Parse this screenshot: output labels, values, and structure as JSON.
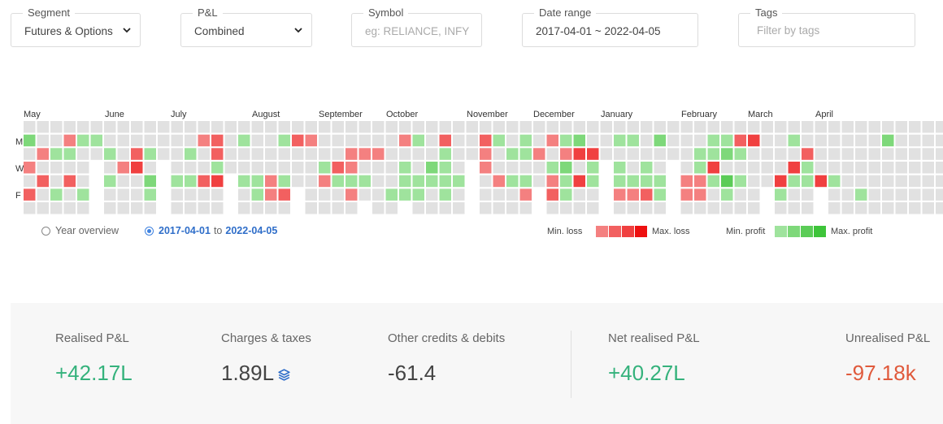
{
  "filters": {
    "segment": {
      "label": "Segment",
      "value": "Futures & Options"
    },
    "pnl": {
      "label": "P&L",
      "value": "Combined"
    },
    "symbol": {
      "label": "Symbol",
      "placeholder": "eg: RELIANCE, INFY"
    },
    "date_range": {
      "label": "Date range",
      "value": "2017-04-01 ~ 2022-04-05"
    },
    "tags": {
      "label": "Tags",
      "placeholder": "Filter by tags"
    }
  },
  "heatmap": {
    "months": [
      "May",
      "June",
      "July",
      "August",
      "September",
      "October",
      "November",
      "December",
      "January",
      "February",
      "March",
      "April"
    ],
    "day_labels": [
      "M",
      "W",
      "F"
    ],
    "colors": {
      "empty": "#e1e1e1",
      "loss": [
        "#f48080",
        "#f26060",
        "#f04040",
        "#ee1010"
      ],
      "profit": [
        "#9fe39d",
        "#7ed87a",
        "#5bcc57",
        "#3ec43a"
      ]
    },
    "week_values": [
      [
        0,
        2,
        0,
        -1,
        0,
        -2,
        0
      ],
      [
        0,
        0,
        -1,
        0,
        -2,
        0,
        0
      ],
      [
        0,
        0,
        1,
        0,
        0,
        1,
        0
      ],
      [
        0,
        -1,
        1,
        0,
        -2,
        0,
        0
      ],
      [
        0,
        1,
        0,
        0,
        0,
        1,
        0
      ],
      [
        0,
        1,
        0,
        0,
        0,
        0,
        0
      ],
      [
        0,
        0,
        1,
        0,
        1,
        0,
        0
      ],
      [
        0,
        0,
        0,
        -1,
        0,
        0,
        0
      ],
      [
        0,
        0,
        -2,
        -3,
        0,
        0,
        0
      ],
      [
        0,
        0,
        1,
        0,
        2,
        1,
        0
      ],
      [
        0,
        0,
        0,
        0,
        0,
        0,
        0
      ],
      [
        0,
        0,
        0,
        0,
        1,
        0,
        0
      ],
      [
        0,
        0,
        1,
        0,
        1,
        0,
        0
      ],
      [
        0,
        -1,
        0,
        0,
        -2,
        0,
        0
      ],
      [
        0,
        -2,
        -2,
        1,
        -3,
        0,
        0
      ],
      [
        0,
        0,
        0,
        0,
        0,
        0,
        0
      ],
      [
        0,
        1,
        0,
        0,
        1,
        0,
        0
      ],
      [
        0,
        0,
        0,
        0,
        1,
        1,
        0
      ],
      [
        0,
        0,
        0,
        0,
        -1,
        -1,
        0
      ],
      [
        0,
        1,
        0,
        0,
        1,
        -2,
        0
      ],
      [
        0,
        -2,
        0,
        0,
        0,
        0,
        0
      ],
      [
        0,
        -1,
        0,
        0,
        0,
        0,
        0
      ],
      [
        0,
        0,
        0,
        1,
        -1,
        0,
        0
      ],
      [
        0,
        0,
        0,
        -2,
        1,
        0,
        0
      ],
      [
        0,
        0,
        -1,
        -1,
        1,
        -1,
        0
      ],
      [
        0,
        0,
        -1,
        0,
        1,
        0,
        0
      ],
      [
        0,
        0,
        -1,
        0,
        0,
        0,
        0
      ],
      [
        0,
        0,
        0,
        0,
        0,
        1,
        0
      ],
      [
        0,
        -1,
        0,
        1,
        1,
        1,
        0
      ],
      [
        0,
        1,
        0,
        0,
        1,
        1,
        0
      ],
      [
        0,
        0,
        0,
        2,
        1,
        0,
        0
      ],
      [
        0,
        -2,
        1,
        1,
        1,
        1,
        0
      ],
      [
        0,
        0,
        0,
        0,
        1,
        0,
        0
      ],
      [
        0,
        0,
        0,
        0,
        0,
        0,
        0
      ],
      [
        0,
        -2,
        -1,
        -1,
        0,
        0,
        0
      ],
      [
        0,
        1,
        0,
        0,
        -1,
        0,
        0
      ],
      [
        0,
        0,
        1,
        0,
        1,
        0,
        0
      ],
      [
        0,
        1,
        1,
        0,
        1,
        -1,
        0
      ],
      [
        0,
        0,
        -1,
        0,
        0,
        0,
        0
      ],
      [
        0,
        -1,
        0,
        1,
        -1,
        -2,
        0
      ],
      [
        0,
        1,
        -1,
        2,
        1,
        1,
        0
      ],
      [
        0,
        2,
        -3,
        0,
        -3,
        0,
        0
      ],
      [
        0,
        0,
        -3,
        1,
        1,
        0,
        0
      ],
      [
        0,
        0,
        0,
        0,
        0,
        0,
        0
      ],
      [
        0,
        1,
        0,
        1,
        1,
        -1,
        0
      ],
      [
        0,
        1,
        0,
        0,
        1,
        -1,
        0
      ],
      [
        0,
        0,
        0,
        1,
        1,
        -2,
        0
      ],
      [
        0,
        2,
        0,
        0,
        1,
        1,
        0
      ],
      [
        0,
        0,
        0,
        0,
        0,
        0,
        0
      ],
      [
        0,
        0,
        0,
        0,
        -1,
        -1,
        0
      ],
      [
        0,
        0,
        1,
        1,
        -1,
        -1,
        0
      ],
      [
        0,
        1,
        1,
        -3,
        1,
        0,
        0
      ],
      [
        0,
        1,
        2,
        0,
        3,
        1,
        0
      ],
      [
        0,
        -2,
        1,
        0,
        1,
        0,
        0
      ],
      [
        0,
        -3,
        0,
        0,
        0,
        0,
        0
      ],
      [
        0,
        0,
        0,
        0,
        0,
        0,
        0
      ],
      [
        0,
        0,
        0,
        0,
        -3,
        1,
        0
      ],
      [
        0,
        1,
        0,
        -3,
        1,
        0,
        0
      ],
      [
        0,
        0,
        -2,
        1,
        1,
        0,
        0
      ],
      [
        0,
        0,
        0,
        0,
        -3,
        0,
        0
      ],
      [
        0,
        0,
        0,
        0,
        1,
        0,
        0
      ],
      [
        0,
        0,
        0,
        0,
        0,
        0,
        0
      ],
      [
        0,
        0,
        0,
        0,
        0,
        1,
        0
      ],
      [
        0,
        0,
        0,
        0,
        0,
        0,
        0
      ],
      [
        0,
        2,
        0,
        0,
        0,
        0,
        0
      ],
      [
        0,
        0,
        0,
        0,
        0,
        0,
        0
      ],
      [
        0,
        0,
        0,
        0,
        0,
        0,
        0
      ],
      [
        0,
        0,
        0,
        0,
        0,
        0,
        0
      ],
      [
        0,
        0,
        0,
        0,
        0,
        0,
        0
      ]
    ],
    "gaps": [
      {
        "week": 5,
        "rows": [
          3,
          4,
          5,
          6
        ]
      },
      {
        "week": 10,
        "rows": [
          3,
          4,
          5,
          6
        ]
      },
      {
        "week": 15,
        "rows": [
          4,
          5,
          6
        ]
      },
      {
        "week": 20,
        "rows": [
          5,
          6
        ]
      },
      {
        "week": 25,
        "rows": [
          6
        ]
      },
      {
        "week": 28,
        "rows": [
          6
        ]
      },
      {
        "week": 33,
        "rows": [
          3,
          4,
          5,
          6
        ]
      },
      {
        "week": 38,
        "rows": [
          5,
          6
        ]
      },
      {
        "week": 43,
        "rows": [
          3,
          4,
          5,
          6
        ]
      },
      {
        "week": 48,
        "rows": [
          3,
          4,
          5,
          6
        ]
      },
      {
        "week": 55,
        "rows": [
          5,
          6
        ]
      },
      {
        "week": 59,
        "rows": [
          5,
          6
        ]
      }
    ]
  },
  "view_toggle": {
    "year_overview": "Year overview",
    "range_from": "2017-04-01",
    "range_to_word": "to",
    "range_to": "2022-04-05"
  },
  "legend": {
    "min_loss": "Min. loss",
    "max_loss": "Max. loss",
    "min_profit": "Min. profit",
    "max_profit": "Max. profit"
  },
  "summary": {
    "realised": {
      "label": "Realised P&L",
      "value": "+42.17L"
    },
    "charges": {
      "label": "Charges & taxes",
      "value": "1.89L"
    },
    "other": {
      "label": "Other credits & debits",
      "value": "-61.4"
    },
    "net": {
      "label": "Net realised P&L",
      "value": "+40.27L"
    },
    "unrealised": {
      "label": "Unrealised P&L",
      "value": "-97.18k"
    }
  }
}
